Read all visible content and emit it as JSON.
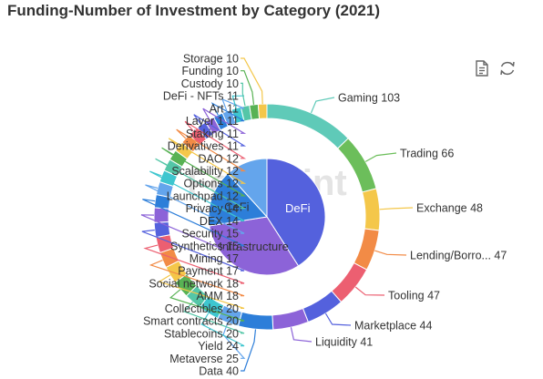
{
  "chart_data": {
    "type": "pie",
    "title": "Funding-Number of Investment by Category  (2021)",
    "watermark": "Footprint",
    "outer": [
      {
        "label": "Gaming",
        "value": 103,
        "color": "#5fcab8"
      },
      {
        "label": "Trading",
        "value": 66,
        "color": "#6cbe5b"
      },
      {
        "label": "Exchange",
        "value": 48,
        "color": "#f4c74a"
      },
      {
        "label": "Lending/Borro...",
        "value": 47,
        "color": "#f28b46"
      },
      {
        "label": "Tooling",
        "value": 47,
        "color": "#ec5f71"
      },
      {
        "label": "Marketplace",
        "value": 44,
        "color": "#5461dd"
      },
      {
        "label": "Liquidity",
        "value": 41,
        "color": "#8c63d8"
      },
      {
        "label": "Data",
        "value": 40,
        "color": "#2d7ed9"
      },
      {
        "label": "Metaverse",
        "value": 25,
        "color": "#64a5ec"
      },
      {
        "label": "Yield",
        "value": 24,
        "color": "#3ec6cf"
      },
      {
        "label": "Stablecoins",
        "value": 20,
        "color": "#54c6a7"
      },
      {
        "label": "Smart contracts",
        "value": 20,
        "color": "#58b254"
      },
      {
        "label": "Collectibles",
        "value": 20,
        "color": "#f4c74a"
      },
      {
        "label": "AMM",
        "value": 18,
        "color": "#f28b46"
      },
      {
        "label": "Social network",
        "value": 18,
        "color": "#ec5f71"
      },
      {
        "label": "Payment",
        "value": 17,
        "color": "#5461dd"
      },
      {
        "label": "Mining",
        "value": 17,
        "color": "#8c63d8"
      },
      {
        "label": "Synthetics",
        "value": 15,
        "color": "#2d7ed9"
      },
      {
        "label": "Security",
        "value": 15,
        "color": "#64a5ec"
      },
      {
        "label": "DEX",
        "value": 14,
        "color": "#3ec6cf"
      },
      {
        "label": "Privacy",
        "value": 14,
        "color": "#54c6a7"
      },
      {
        "label": "Launchpad",
        "value": 12,
        "color": "#58b254"
      },
      {
        "label": "Options",
        "value": 12,
        "color": "#f4c74a"
      },
      {
        "label": "Scalability",
        "value": 12,
        "color": "#f28b46"
      },
      {
        "label": "DAO",
        "value": 12,
        "color": "#ec5f71"
      },
      {
        "label": "Derivatives",
        "value": 11,
        "color": "#5461dd"
      },
      {
        "label": "Staking",
        "value": 11,
        "color": "#8c63d8"
      },
      {
        "label": "Layer 1",
        "value": 11,
        "color": "#2d7ed9"
      },
      {
        "label": "Art",
        "value": 11,
        "color": "#64a5ec"
      },
      {
        "label": "DeFi - NFTs",
        "value": 11,
        "color": "#3ec6cf"
      },
      {
        "label": "Custody",
        "value": 10,
        "color": "#54c6a7"
      },
      {
        "label": "Funding",
        "value": 10,
        "color": "#58b254"
      },
      {
        "label": "Storage",
        "value": 10,
        "color": "#f4c74a"
      }
    ],
    "inner": [
      {
        "label": "DeFi",
        "value": 350,
        "color": "#5461dd"
      },
      {
        "label": "Infrastructure",
        "value": 270,
        "color": "#8c63d8"
      },
      {
        "label": "CeFi",
        "value": 135,
        "color": "#2d7ed9"
      },
      {
        "label": "",
        "value": 100,
        "color": "#64a5ec"
      }
    ]
  },
  "toolbar": [
    {
      "name": "data-view-icon"
    },
    {
      "name": "refresh-icon"
    }
  ]
}
